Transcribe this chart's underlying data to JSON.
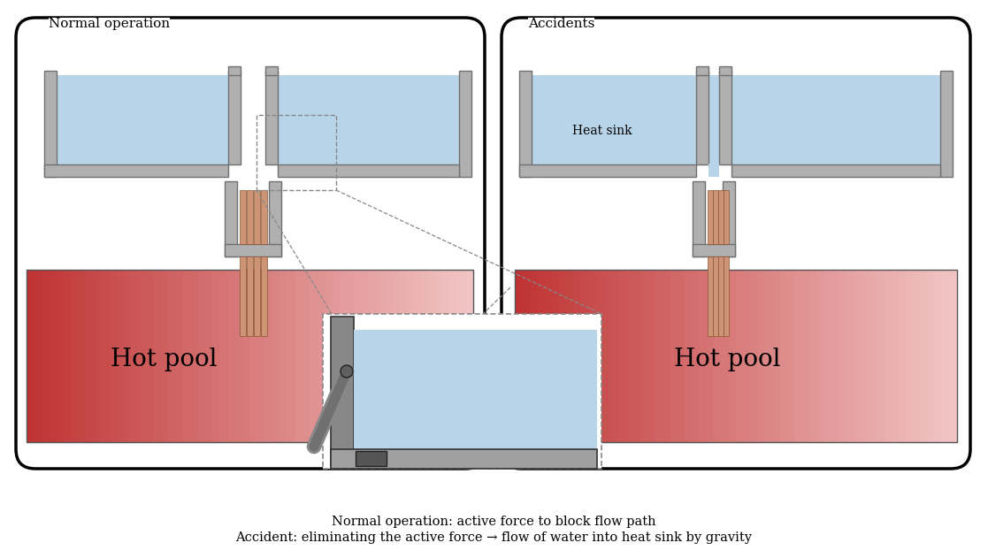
{
  "bg_color": "#ffffff",
  "water_color": "#b8d4e8",
  "tube_color": "#cd9575",
  "struct_color": "#b0b0b0",
  "struct_edge": "#707070",
  "dashed_color": "#888888",
  "inset_wall_color": "#909090",
  "inset_bottom_color": "#a0a0a0",
  "inset_dark_block": "#606060",
  "lever_color": "#909090",
  "text_normal": "Normal operation",
  "text_accidents": "Accidents",
  "text_hot_pool": "Hot pool",
  "text_heat_sink": "Heat sink",
  "label1": "Normal operation: active force to block flow path",
  "label2": "Accident: eliminating the active force → flow of water into heat sink by gravity"
}
